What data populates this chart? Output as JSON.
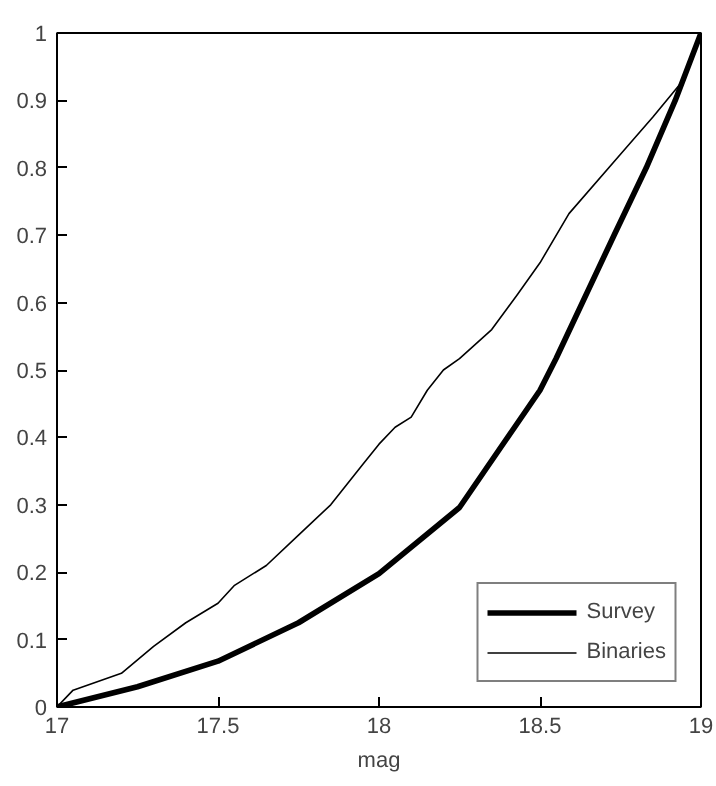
{
  "chart_data": {
    "type": "line",
    "xlabel": "mag",
    "xlim": [
      17,
      19
    ],
    "ylim": [
      0,
      1
    ],
    "xticks": [
      17,
      17.5,
      18,
      18.5,
      19
    ],
    "yticks": [
      0,
      0.1,
      0.2,
      0.3,
      0.4,
      0.5,
      0.6,
      0.7,
      0.8,
      0.9,
      1
    ],
    "grid": false,
    "legend": "bottom right",
    "line_style": "solid",
    "marker": "none",
    "series": [
      {
        "name": "Survey",
        "color": "#000000",
        "x": [
          17,
          17.25,
          17.5,
          17.75,
          18,
          18.25,
          18.5,
          18.55,
          18.73,
          18.83,
          18.92,
          19
        ],
        "values": [
          0,
          0.03,
          0.068,
          0.125,
          0.198,
          0.296,
          0.47,
          0.517,
          0.7,
          0.8,
          0.9,
          1
        ]
      },
      {
        "name": "Binaries",
        "color": "#000000",
        "x": [
          17,
          17.05,
          17.2,
          17.3,
          17.4,
          17.5,
          17.55,
          17.65,
          17.75,
          17.85,
          17.95,
          18,
          18.05,
          18.1,
          18.15,
          18.2,
          18.25,
          18.35,
          18.43,
          18.5,
          18.59,
          18.75,
          18.85,
          18.95,
          19
        ],
        "values": [
          0,
          0.025,
          0.05,
          0.09,
          0.125,
          0.154,
          0.18,
          0.21,
          0.255,
          0.3,
          0.36,
          0.39,
          0.415,
          0.43,
          0.47,
          0.5,
          0.517,
          0.56,
          0.612,
          0.659,
          0.732,
          0.82,
          0.875,
          0.933,
          1
        ]
      }
    ]
  }
}
